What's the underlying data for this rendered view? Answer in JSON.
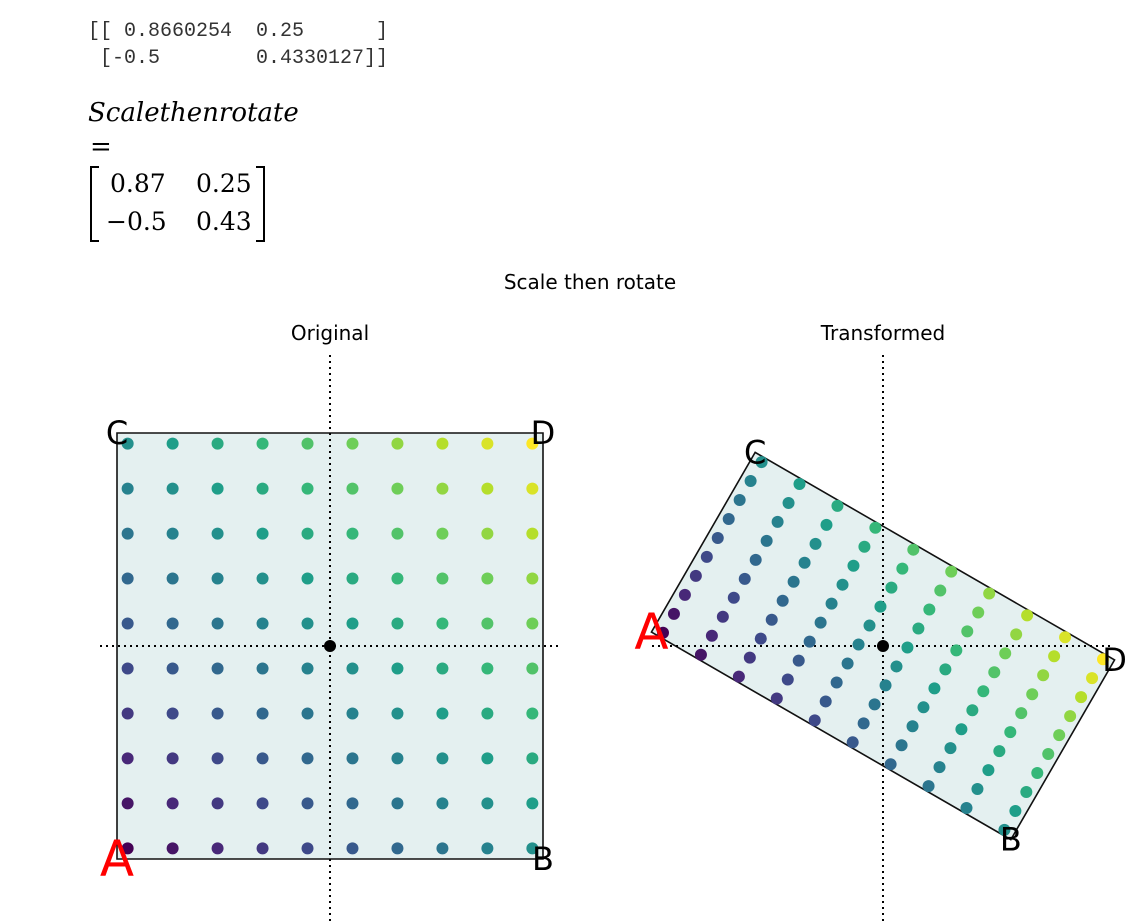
{
  "printed_matrix": {
    "row1": "[[ 0.8660254  0.25      ]",
    "row2": " [-0.5        0.4330127]]"
  },
  "math_title": "Scalethenrotate",
  "math_equals": "=",
  "math_matrix": {
    "r1c1": "0.87",
    "r1c2": "0.25",
    "r2c1": "−0.5",
    "r2c2": "0.43"
  },
  "chart_data": {
    "type": "scatter",
    "suptitle": "Scale then rotate",
    "subplots": [
      {
        "title": "Original"
      },
      {
        "title": "Transformed"
      }
    ],
    "transform_matrix": [
      [
        0.8660254,
        0.25
      ],
      [
        -0.5,
        0.4330127
      ]
    ],
    "grid": false,
    "axes_visible": false,
    "grid_points": {
      "x_min": -0.95,
      "x_max": 0.95,
      "y_min": -0.95,
      "y_max": 0.95,
      "count_per_axis": 10
    },
    "square": {
      "x_min": -1,
      "x_max": 1,
      "y_min": -1,
      "y_max": 1
    },
    "corner_labels": [
      {
        "text": "A",
        "x": -1,
        "y": -1,
        "color": "#ff0000",
        "size": "large"
      },
      {
        "text": "B",
        "x": 1,
        "y": -1,
        "color": "#000000",
        "size": "normal"
      },
      {
        "text": "C",
        "x": -1,
        "y": 1,
        "color": "#000000",
        "size": "normal"
      },
      {
        "text": "D",
        "x": 1,
        "y": 1,
        "color": "#000000",
        "size": "normal"
      }
    ],
    "colormap": "viridis",
    "color_by": "x + y",
    "fill_color": "#e4f0f0",
    "origin_marker": {
      "x": 0,
      "y": 0,
      "color": "#000000"
    },
    "reference_lines": "dotted x=0 and y=0"
  }
}
